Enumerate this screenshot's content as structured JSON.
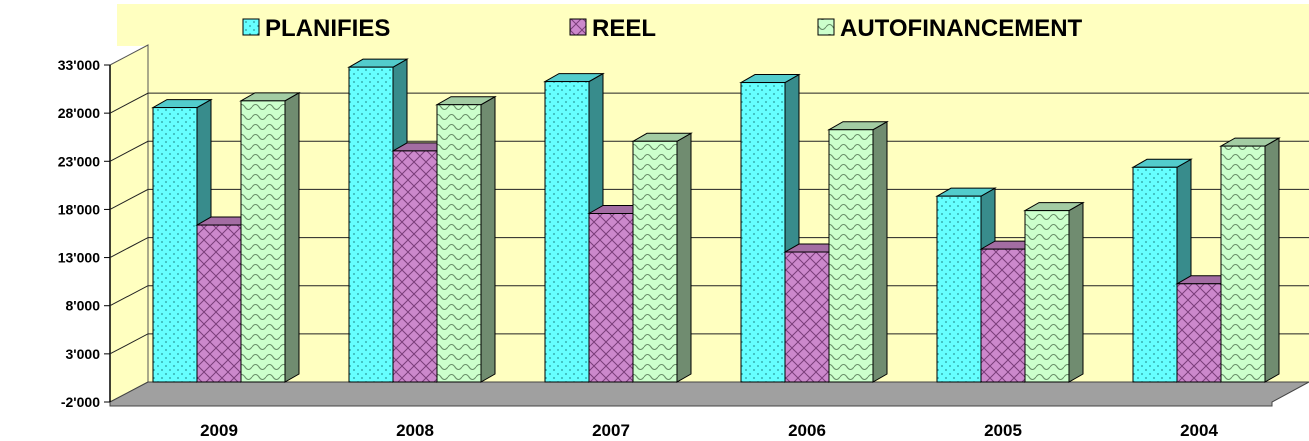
{
  "chart_data": {
    "type": "bar",
    "categories": [
      "2009",
      "2008",
      "2007",
      "2006",
      "2005",
      "2004"
    ],
    "series": [
      {
        "name": "PLANIFIES",
        "values": [
          26500,
          30700,
          29200,
          29100,
          17300,
          20300
        ]
      },
      {
        "name": "REEL",
        "values": [
          14300,
          22000,
          15500,
          11500,
          11800,
          8200
        ]
      },
      {
        "name": "AUTOFINANCEMENT",
        "values": [
          27200,
          26800,
          23000,
          24200,
          15800,
          22500
        ]
      }
    ],
    "y_ticks": [
      "33'000",
      "28'000",
      "23'000",
      "18'000",
      "13'000",
      "8'000",
      "3'000",
      "-2'000"
    ],
    "ylim": [
      -2000,
      33000
    ],
    "legend_position": "top",
    "grid": true,
    "colors": {
      "PLANIFIES": "#66ffff",
      "REEL": "#cc88cc",
      "AUTOFINANCEMENT": "#ccffcc",
      "wall": "#ffffc0",
      "floor": "#a0a0a0"
    },
    "patterns": {
      "PLANIFIES": "dotted",
      "REEL": "crosshatch",
      "AUTOFINANCEMENT": "wave"
    }
  }
}
